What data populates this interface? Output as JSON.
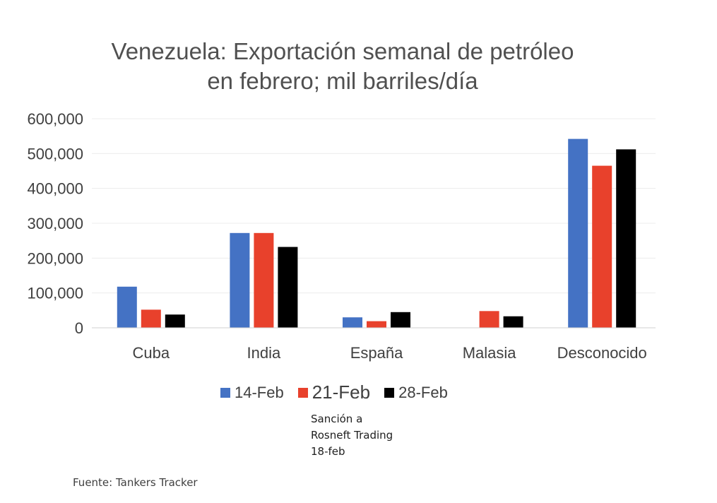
{
  "chart_data": {
    "type": "bar",
    "title_lines": [
      "Venezuela: Exportación semanal de petróleo",
      "en febrero; mil barriles/día"
    ],
    "categories": [
      "Cuba",
      "India",
      "España",
      "Malasia",
      "Desconocido"
    ],
    "series": [
      {
        "name": "14-Feb",
        "color": "#4472c4",
        "values": [
          118000,
          272000,
          30000,
          0,
          542000
        ]
      },
      {
        "name": "21-Feb",
        "color": "#e8412c",
        "values": [
          52000,
          272000,
          19000,
          48000,
          465000
        ]
      },
      {
        "name": "28-Feb",
        "color": "#000000",
        "values": [
          38000,
          232000,
          45000,
          33000,
          512000
        ]
      }
    ],
    "ylim": [
      0,
      600000
    ],
    "yticks": [
      "0",
      "100,000",
      "200,000",
      "300,000",
      "400,000",
      "500,000",
      "600,000"
    ],
    "grid": true,
    "legend_position": "bottom"
  },
  "annotation_lines": [
    "Sanción a",
    "Rosneft Trading",
    "18-feb"
  ],
  "source": "Fuente: Tankers Tracker"
}
